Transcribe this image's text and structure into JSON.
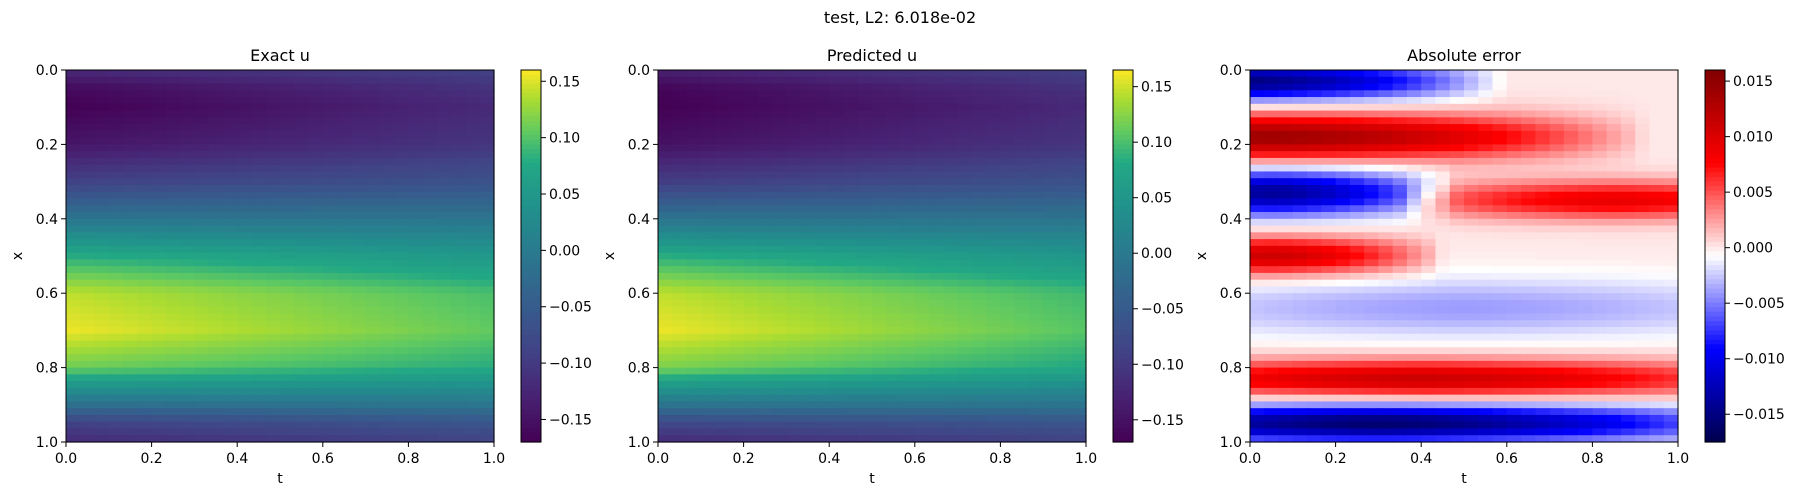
{
  "figure": {
    "suptitle": "test, L2: 6.018e-02"
  },
  "chart_data": [
    {
      "type": "heatmap",
      "title": "Exact u",
      "xlabel": "t",
      "ylabel": "x",
      "xlim": [
        0.0,
        1.0
      ],
      "ylim": [
        1.0,
        0.0
      ],
      "x_ticks": [
        "0.0",
        "0.2",
        "0.4",
        "0.6",
        "0.8",
        "1.0"
      ],
      "y_ticks": [
        "0.0",
        "0.2",
        "0.4",
        "0.6",
        "0.8",
        "1.0"
      ],
      "colormap": "viridis",
      "colorbar": {
        "range": [
          -0.17,
          0.16
        ],
        "ticks": [
          0.15,
          0.1,
          0.05,
          0.0,
          -0.05,
          -0.1,
          -0.15
        ],
        "tick_labels": [
          "0.15",
          "0.10",
          "0.05",
          "0.00",
          "−0.05",
          "−0.10",
          "−0.15"
        ]
      },
      "profile": {
        "x": [
          0.0,
          0.05,
          0.1,
          0.2,
          0.3,
          0.4,
          0.5,
          0.6,
          0.7,
          0.8,
          0.9,
          0.95,
          1.0
        ],
        "u_at_t0": [
          -0.12,
          -0.16,
          -0.17,
          -0.145,
          -0.09,
          -0.01,
          0.08,
          0.14,
          0.155,
          0.11,
          -0.02,
          -0.09,
          -0.12
        ],
        "u_at_t1": [
          -0.09,
          -0.11,
          -0.12,
          -0.105,
          -0.065,
          -0.01,
          0.05,
          0.095,
          0.105,
          0.08,
          -0.01,
          -0.06,
          -0.09
        ]
      }
    },
    {
      "type": "heatmap",
      "title": "Predicted u",
      "xlabel": "t",
      "ylabel": "x",
      "xlim": [
        0.0,
        1.0
      ],
      "ylim": [
        1.0,
        0.0
      ],
      "x_ticks": [
        "0.0",
        "0.2",
        "0.4",
        "0.6",
        "0.8",
        "1.0"
      ],
      "y_ticks": [
        "0.0",
        "0.2",
        "0.4",
        "0.6",
        "0.8",
        "1.0"
      ],
      "colormap": "viridis",
      "colorbar": {
        "range": [
          -0.17,
          0.165
        ],
        "ticks": [
          0.15,
          0.1,
          0.05,
          0.0,
          -0.05,
          -0.1,
          -0.15
        ],
        "tick_labels": [
          "0.15",
          "0.10",
          "0.05",
          "0.00",
          "−0.05",
          "−0.10",
          "−0.15"
        ]
      },
      "profile": {
        "x": [
          0.0,
          0.05,
          0.1,
          0.2,
          0.3,
          0.4,
          0.5,
          0.6,
          0.7,
          0.8,
          0.9,
          0.95,
          1.0
        ],
        "u_at_t0": [
          -0.13,
          -0.165,
          -0.17,
          -0.15,
          -0.095,
          -0.01,
          0.085,
          0.145,
          0.16,
          0.12,
          -0.01,
          -0.08,
          -0.12
        ],
        "u_at_t1": [
          -0.09,
          -0.11,
          -0.12,
          -0.105,
          -0.065,
          -0.01,
          0.05,
          0.095,
          0.105,
          0.08,
          -0.01,
          -0.06,
          -0.09
        ]
      }
    },
    {
      "type": "heatmap",
      "title": "Absolute error",
      "xlabel": "t",
      "ylabel": "x",
      "xlim": [
        0.0,
        1.0
      ],
      "ylim": [
        1.0,
        0.0
      ],
      "x_ticks": [
        "0.0",
        "0.2",
        "0.4",
        "0.6",
        "0.8",
        "1.0"
      ],
      "y_ticks": [
        "0.0",
        "0.2",
        "0.4",
        "0.6",
        "0.8",
        "1.0"
      ],
      "colormap": "seismic",
      "colorbar": {
        "range": [
          -0.0175,
          0.016
        ],
        "ticks": [
          0.015,
          0.01,
          0.005,
          0.0,
          -0.005,
          -0.01,
          -0.015
        ],
        "tick_labels": [
          "0.015",
          "0.010",
          "0.005",
          "0.000",
          "−0.005",
          "−0.010",
          "−0.015"
        ]
      },
      "bands": [
        {
          "x_center": 0.03,
          "x_width": 0.05,
          "t_start": 0.0,
          "t_end": 0.6,
          "t_peak": 0.0,
          "value": -0.015
        },
        {
          "x_center": 0.18,
          "x_width": 0.06,
          "t_start": 0.0,
          "t_end": 0.9,
          "t_peak": 0.05,
          "value": 0.014
        },
        {
          "x_center": 0.33,
          "x_width": 0.06,
          "t_start": 0.0,
          "t_end": 0.45,
          "t_peak": 0.05,
          "value": -0.014
        },
        {
          "x_center": 0.35,
          "x_width": 0.05,
          "t_start": 0.4,
          "t_end": 1.0,
          "t_peak": 0.85,
          "value": 0.009
        },
        {
          "x_center": 0.5,
          "x_width": 0.05,
          "t_start": 0.0,
          "t_end": 0.42,
          "t_peak": 0.05,
          "value": 0.011
        },
        {
          "x_center": 0.64,
          "x_width": 0.08,
          "t_start": 0.0,
          "t_end": 1.0,
          "t_peak": 0.5,
          "value": -0.004
        },
        {
          "x_center": 0.83,
          "x_width": 0.05,
          "t_start": 0.0,
          "t_end": 1.0,
          "t_peak": 0.4,
          "value": 0.011
        },
        {
          "x_center": 0.95,
          "x_width": 0.05,
          "t_start": 0.0,
          "t_end": 1.0,
          "t_peak": 0.3,
          "value": -0.016
        }
      ]
    }
  ]
}
